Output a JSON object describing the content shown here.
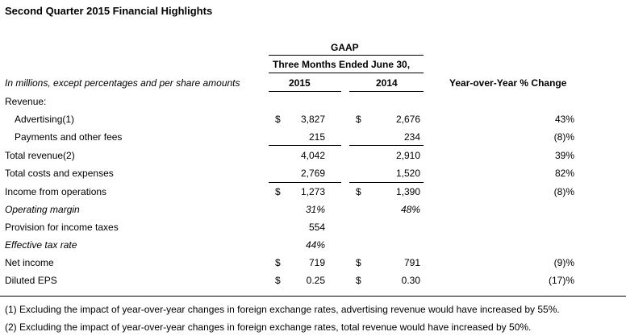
{
  "title": "Second Quarter 2015 Financial Highlights",
  "header": {
    "gaap": "GAAP",
    "period": "Three Months Ended June 30,",
    "units_note": "In millions, except percentages and per share amounts",
    "col_2015": "2015",
    "col_2014": "2014",
    "col_change": "Year-over-Year % Change"
  },
  "rows": [
    {
      "label": "Revenue:",
      "dollar_2015": "",
      "v2015": "",
      "dollar_2014": "",
      "v2014": "",
      "change": ""
    },
    {
      "label": "Advertising(1)",
      "dollar_2015": "$",
      "v2015": "3,827",
      "dollar_2014": "$",
      "v2014": "2,676",
      "change": "43%"
    },
    {
      "label": "Payments and other fees",
      "dollar_2015": "",
      "v2015": "215",
      "dollar_2014": "",
      "v2014": "234",
      "change": "(8)%"
    },
    {
      "label": "Total revenue(2)",
      "dollar_2015": "",
      "v2015": "4,042",
      "dollar_2014": "",
      "v2014": "2,910",
      "change": "39%"
    },
    {
      "label": "Total costs and expenses",
      "dollar_2015": "",
      "v2015": "2,769",
      "dollar_2014": "",
      "v2014": "1,520",
      "change": "82%"
    },
    {
      "label": "Income from operations",
      "dollar_2015": "$",
      "v2015": "1,273",
      "dollar_2014": "$",
      "v2014": "1,390",
      "change": "(8)%"
    },
    {
      "label": "Operating margin",
      "dollar_2015": "",
      "v2015": "31%",
      "dollar_2014": "",
      "v2014": "48%",
      "change": ""
    },
    {
      "label": "Provision for income taxes",
      "dollar_2015": "",
      "v2015": "554",
      "dollar_2014": "",
      "v2014": "",
      "change": ""
    },
    {
      "label": "Effective tax rate",
      "dollar_2015": "",
      "v2015": "44%",
      "dollar_2014": "",
      "v2014": "",
      "change": ""
    },
    {
      "label": "Net income",
      "dollar_2015": "$",
      "v2015": "719",
      "dollar_2014": "$",
      "v2014": "791",
      "change": "(9)%"
    },
    {
      "label": "Diluted EPS",
      "dollar_2015": "$",
      "v2015": "0.25",
      "dollar_2014": "$",
      "v2014": "0.30",
      "change": "(17)%"
    }
  ],
  "footnotes": [
    "(1)   Excluding the impact of year-over-year changes in foreign exchange rates, advertising revenue would have increased by 55%.",
    "(2)   Excluding the impact of year-over-year changes in foreign exchange rates, total revenue would have increased by 50%."
  ]
}
